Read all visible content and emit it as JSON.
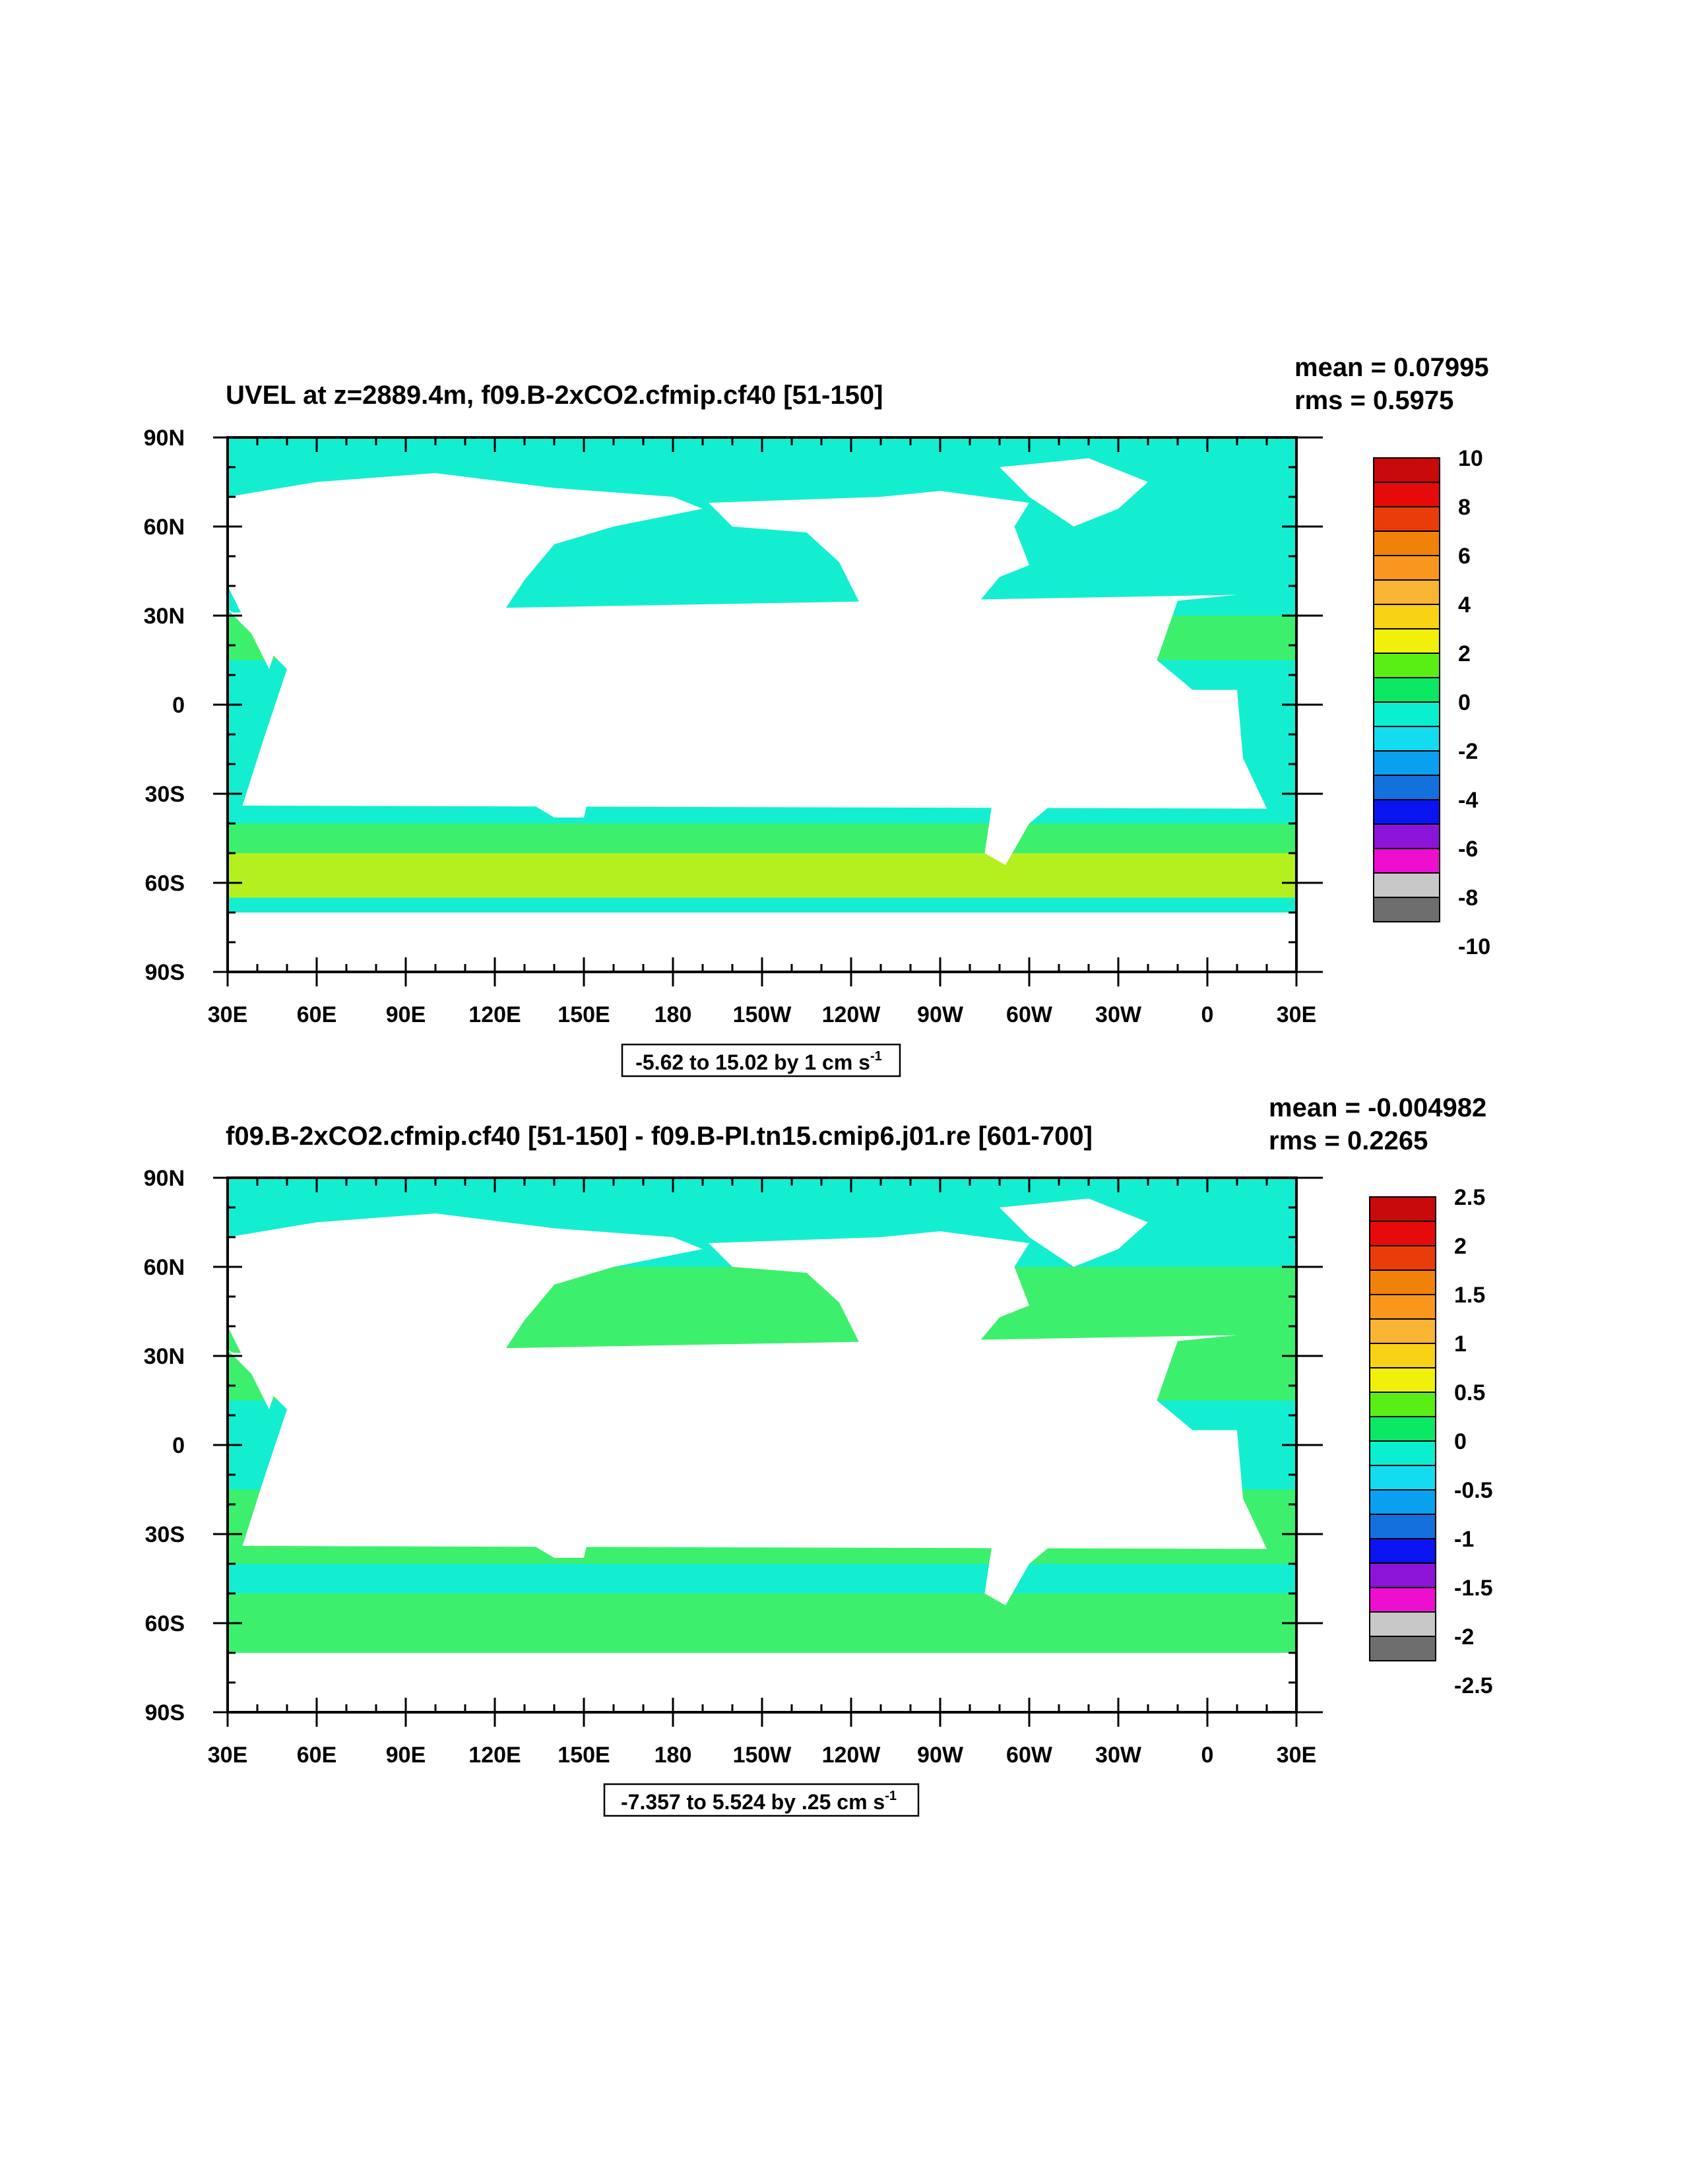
{
  "chart_data": [
    {
      "type": "heatmap",
      "title": "UVEL at z=2889.4m, f09.B-2xCO2.cfmip.cf40 [51-150]",
      "stats": {
        "mean_label": "mean = 0.07995",
        "rms_label": "rms = 0.5975"
      },
      "info_label": "-5.62 to 15.02 by 1 cm s",
      "info_sup": "-1",
      "x_ticks": [
        "30E",
        "60E",
        "90E",
        "120E",
        "150E",
        "180",
        "150W",
        "120W",
        "90W",
        "60W",
        "30W",
        "0",
        "30E"
      ],
      "y_ticks": [
        "90N",
        "60N",
        "30N",
        "0",
        "30S",
        "60S",
        "90S"
      ],
      "xlim": [
        30,
        390
      ],
      "ylim": [
        -90,
        90
      ],
      "colorbar_labels": [
        "10",
        "8",
        "6",
        "4",
        "2",
        "0",
        "-2",
        "-4",
        "-6",
        "-8",
        "-10"
      ],
      "colorbar_min": -10,
      "colorbar_max": 10,
      "ocean_field": [
        {
          "lat_range": [
            60,
            90
          ],
          "level": 0
        },
        {
          "lat_range": [
            30,
            60
          ],
          "level": 0
        },
        {
          "lat_range": [
            15,
            30
          ],
          "level": 1
        },
        {
          "lat_range": [
            -15,
            15
          ],
          "level": 0
        },
        {
          "lat_range": [
            -40,
            -15
          ],
          "level": 0
        },
        {
          "lat_range": [
            -50,
            -40
          ],
          "level": 1
        },
        {
          "lat_range": [
            -65,
            -50
          ],
          "level": 2
        },
        {
          "lat_range": [
            -75,
            -65
          ],
          "level": 0
        }
      ]
    },
    {
      "type": "heatmap",
      "title": "f09.B-2xCO2.cfmip.cf40 [51-150] - f09.B-PI.tn15.cmip6.j01.re [601-700]",
      "stats": {
        "mean_label": "mean = -0.004982",
        "rms_label": "rms = 0.2265"
      },
      "info_label": "-7.357 to 5.524 by .25 cm s",
      "info_sup": "-1",
      "x_ticks": [
        "30E",
        "60E",
        "90E",
        "120E",
        "150E",
        "180",
        "150W",
        "120W",
        "90W",
        "60W",
        "30W",
        "0",
        "30E"
      ],
      "y_ticks": [
        "90N",
        "60N",
        "30N",
        "0",
        "30S",
        "60S",
        "90S"
      ],
      "xlim": [
        30,
        390
      ],
      "ylim": [
        -90,
        90
      ],
      "colorbar_labels": [
        "2.5",
        "2",
        "1.5",
        "1",
        "0.5",
        "0",
        "-0.5",
        "-1",
        "-1.5",
        "-2",
        "-2.5"
      ],
      "colorbar_min": -2.5,
      "colorbar_max": 2.5,
      "ocean_field": [
        {
          "lat_range": [
            60,
            90
          ],
          "level": 0
        },
        {
          "lat_range": [
            30,
            60
          ],
          "level": 1
        },
        {
          "lat_range": [
            15,
            30
          ],
          "level": 1
        },
        {
          "lat_range": [
            -15,
            15
          ],
          "level": 0
        },
        {
          "lat_range": [
            -40,
            -15
          ],
          "level": 1
        },
        {
          "lat_range": [
            -50,
            -40
          ],
          "level": 0
        },
        {
          "lat_range": [
            -65,
            -50
          ],
          "level": 1
        },
        {
          "lat_range": [
            -75,
            -65
          ],
          "level": 1
        }
      ]
    }
  ],
  "colors": {
    "palette": [
      "#6e6e6e",
      "#c8c8c8",
      "#ee0ed0",
      "#8c14d8",
      "#0a14f0",
      "#1470dc",
      "#0aa0f0",
      "#14dcf0",
      "#0aefd0",
      "#0ae864",
      "#5aef14",
      "#f0f00a",
      "#f8d214",
      "#f8b432",
      "#f8961e",
      "#f0820a",
      "#ea3c0a",
      "#e60a0a",
      "#c80a0a"
    ],
    "ocean_base": "#14eed0",
    "ocean_pos": "#3cf06e",
    "ocean_strong": "#b4f01e"
  }
}
